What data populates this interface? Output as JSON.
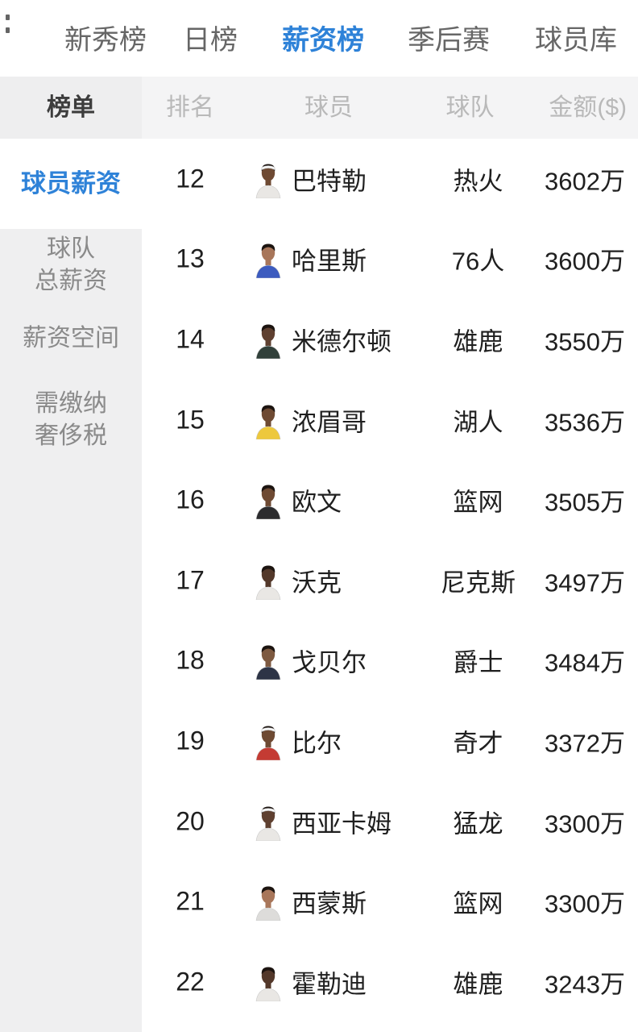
{
  "tabs": [
    {
      "label": "新秀榜",
      "active": false
    },
    {
      "label": "日榜",
      "active": false
    },
    {
      "label": "薪资榜",
      "active": true
    },
    {
      "label": "季后赛",
      "active": false
    },
    {
      "label": "球员库",
      "active": false
    }
  ],
  "table_header": {
    "list": "榜单",
    "rank": "排名",
    "player": "球员",
    "team": "球队",
    "amount": "金额($)"
  },
  "sidebar": {
    "items": [
      {
        "lines": [
          "球员薪资"
        ],
        "active": true
      },
      {
        "lines": [
          "球队",
          "总薪资"
        ],
        "active": false
      },
      {
        "lines": [
          "薪资空间"
        ],
        "active": false
      },
      {
        "lines": [
          "需缴纳",
          "奢侈税"
        ],
        "active": false
      }
    ]
  },
  "rows": [
    {
      "rank": "12",
      "name": "巴特勒",
      "team": "热火",
      "amount": "3602万",
      "jersey": "#e9e7e4",
      "skin": "#6e4a33",
      "headband": true
    },
    {
      "rank": "13",
      "name": "哈里斯",
      "team": "76人",
      "amount": "3600万",
      "jersey": "#3c5bbf",
      "skin": "#a8765a",
      "headband": false
    },
    {
      "rank": "14",
      "name": "米德尔顿",
      "team": "雄鹿",
      "amount": "3550万",
      "jersey": "#31403a",
      "skin": "#5f4030",
      "headband": false
    },
    {
      "rank": "15",
      "name": "浓眉哥",
      "team": "湖人",
      "amount": "3536万",
      "jersey": "#edc83d",
      "skin": "#6e4a33",
      "headband": false
    },
    {
      "rank": "16",
      "name": "欧文",
      "team": "篮网",
      "amount": "3505万",
      "jersey": "#2c2c2e",
      "skin": "#6e4a33",
      "headband": false
    },
    {
      "rank": "17",
      "name": "沃克",
      "team": "尼克斯",
      "amount": "3497万",
      "jersey": "#e9e7e4",
      "skin": "#53382a",
      "headband": false
    },
    {
      "rank": "18",
      "name": "戈贝尔",
      "team": "爵士",
      "amount": "3484万",
      "jersey": "#2d3446",
      "skin": "#7d5940",
      "headband": false
    },
    {
      "rank": "19",
      "name": "比尔",
      "team": "奇才",
      "amount": "3372万",
      "jersey": "#c43b33",
      "skin": "#6e4a33",
      "headband": true
    },
    {
      "rank": "20",
      "name": "西亚卡姆",
      "team": "猛龙",
      "amount": "3300万",
      "jersey": "#e9e7e4",
      "skin": "#5f4030",
      "headband": true
    },
    {
      "rank": "21",
      "name": "西蒙斯",
      "team": "篮网",
      "amount": "3300万",
      "jersey": "#dddcda",
      "skin": "#a8765a",
      "headband": false
    },
    {
      "rank": "22",
      "name": "霍勒迪",
      "team": "雄鹿",
      "amount": "3243万",
      "jersey": "#e9e7e4",
      "skin": "#53382a",
      "headband": false
    }
  ],
  "colors": {
    "accent": "#2e82d8",
    "tab_inactive": "#666666",
    "header_bg": "#f4f4f5",
    "header_text": "#b9b9b9",
    "sidebar_bg": "#efeff0",
    "sidebar_text": "#8a8a8a",
    "row_text": "#1f1f1f"
  }
}
